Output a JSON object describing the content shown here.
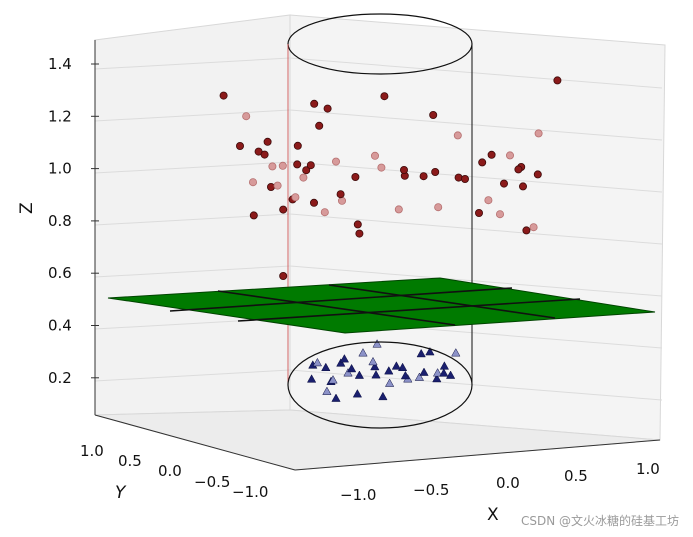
{
  "chart_data": {
    "type": "scatter",
    "projection": "3d",
    "title": "",
    "xlabel": "X",
    "ylabel": "Y",
    "zlabel": "Z",
    "x_ticks": [
      "−1.0",
      "−0.5",
      "0.0",
      "0.5",
      "1.0"
    ],
    "y_ticks": [
      "1.0",
      "0.5",
      "0.0",
      "−0.5",
      "−1.0"
    ],
    "z_ticks": [
      "1.4",
      "1.2",
      "1.0",
      "0.8",
      "0.6",
      "0.4",
      "0.2"
    ],
    "zlim": [
      0.1,
      1.45
    ],
    "grid": true,
    "separating_plane": {
      "z": 0.45,
      "color": "#007a00"
    },
    "cylinder_outline": true,
    "colors": {
      "upper_dark": "#8b1a1a",
      "upper_light": "#d79a9a",
      "lower_dark": "#1a1f6e",
      "lower_light": "#8c92c8",
      "pane": "#f2f2f2",
      "grid": "#dcdcdc"
    },
    "series": [
      {
        "marker": "circle",
        "points": [
          {
            "x": -0.95,
            "y": -0.2,
            "z": 1.3
          },
          {
            "x": -0.85,
            "y": 0.1,
            "z": 1.2
          },
          {
            "x": -0.82,
            "y": -0.4,
            "z": 1.12
          },
          {
            "x": -0.8,
            "y": 0.3,
            "z": 1.05
          },
          {
            "x": -0.78,
            "y": -0.1,
            "z": 0.96
          },
          {
            "x": -0.75,
            "y": 0.5,
            "z": 0.9
          },
          {
            "x": -0.72,
            "y": -0.5,
            "z": 0.86
          },
          {
            "x": -0.7,
            "y": 0.2,
            "z": 1.0
          },
          {
            "x": -0.68,
            "y": -0.3,
            "z": 1.08
          },
          {
            "x": -0.66,
            "y": 0.4,
            "z": 0.82
          },
          {
            "x": -0.64,
            "y": 0.0,
            "z": 0.94
          },
          {
            "x": -0.62,
            "y": -0.6,
            "z": 1.15
          },
          {
            "x": -0.6,
            "y": 0.6,
            "z": 0.98
          },
          {
            "x": -0.58,
            "y": -0.2,
            "z": 1.03
          },
          {
            "x": -0.56,
            "y": 0.1,
            "z": 0.88
          },
          {
            "x": -0.55,
            "y": -0.4,
            "z": 0.62
          },
          {
            "x": -0.52,
            "y": 0.3,
            "z": 0.95
          },
          {
            "x": -0.5,
            "y": -0.1,
            "z": 1.1
          },
          {
            "x": -0.48,
            "y": 0.5,
            "z": 1.22
          },
          {
            "x": -0.46,
            "y": -0.5,
            "z": 0.93
          },
          {
            "x": -0.44,
            "y": 0.2,
            "z": 0.86
          },
          {
            "x": -0.42,
            "y": -0.3,
            "z": 1.02
          },
          {
            "x": -0.4,
            "y": 0.4,
            "z": 0.81
          },
          {
            "x": -0.38,
            "y": 0.0,
            "z": 1.17
          },
          {
            "x": -0.35,
            "y": -0.6,
            "z": 1.06
          },
          {
            "x": -0.32,
            "y": 0.6,
            "z": 0.84
          },
          {
            "x": -0.3,
            "y": -0.2,
            "z": 1.25
          },
          {
            "x": -0.26,
            "y": 0.1,
            "z": 0.9
          },
          {
            "x": -0.22,
            "y": -0.4,
            "z": 1.06
          },
          {
            "x": -0.18,
            "y": 0.3,
            "z": 0.77
          },
          {
            "x": -0.14,
            "y": -0.1,
            "z": 0.98
          },
          {
            "x": -0.1,
            "y": 0.5,
            "z": 1.02
          },
          {
            "x": -0.06,
            "y": -0.5,
            "z": 0.79
          },
          {
            "x": 0.0,
            "y": 0.2,
            "z": 1.27
          },
          {
            "x": 0.05,
            "y": -0.3,
            "z": 1.03
          },
          {
            "x": 0.1,
            "y": 0.4,
            "z": 0.95
          },
          {
            "x": 0.15,
            "y": 0.0,
            "z": 1.0
          },
          {
            "x": 0.2,
            "y": -0.6,
            "z": 0.89
          },
          {
            "x": 0.25,
            "y": 0.6,
            "z": 1.17
          },
          {
            "x": 0.3,
            "y": -0.2,
            "z": 0.99
          },
          {
            "x": 0.35,
            "y": 0.1,
            "z": 0.85
          },
          {
            "x": 0.4,
            "y": -0.4,
            "z": 1.02
          },
          {
            "x": 0.45,
            "y": 0.3,
            "z": 0.95
          },
          {
            "x": 0.5,
            "y": -0.1,
            "z": 1.14
          },
          {
            "x": 0.55,
            "y": 0.5,
            "z": 0.8
          },
          {
            "x": 0.6,
            "y": -0.5,
            "z": 1.0
          },
          {
            "x": 0.65,
            "y": 0.2,
            "z": 0.87
          },
          {
            "x": 0.68,
            "y": -0.3,
            "z": 1.05
          },
          {
            "x": 0.72,
            "y": 0.4,
            "z": 0.92
          },
          {
            "x": 0.75,
            "y": 0.0,
            "z": 0.83
          },
          {
            "x": 0.78,
            "y": -0.6,
            "z": 1.1
          },
          {
            "x": 0.8,
            "y": 0.6,
            "z": 0.97
          },
          {
            "x": 0.84,
            "y": -0.2,
            "z": 1.07
          },
          {
            "x": 0.88,
            "y": 0.1,
            "z": 0.93
          },
          {
            "x": 0.92,
            "y": -0.4,
            "z": 1.03
          },
          {
            "x": 0.95,
            "y": 0.3,
            "z": 1.12
          },
          {
            "x": 1.0,
            "y": -0.1,
            "z": 0.99
          },
          {
            "x": 1.04,
            "y": 0.5,
            "z": 1.31
          },
          {
            "x": 0.96,
            "y": 0.0,
            "z": 0.78
          },
          {
            "x": 0.86,
            "y": 0.4,
            "z": 0.74
          }
        ]
      },
      {
        "marker": "triangle",
        "points": [
          {
            "x": -0.42,
            "y": 0.0,
            "z": 0.25
          },
          {
            "x": -0.38,
            "y": 0.3,
            "z": 0.22
          },
          {
            "x": -0.35,
            "y": -0.3,
            "z": 0.28
          },
          {
            "x": -0.32,
            "y": 0.1,
            "z": 0.18
          },
          {
            "x": -0.3,
            "y": 0.4,
            "z": 0.23
          },
          {
            "x": -0.28,
            "y": -0.1,
            "z": 0.2
          },
          {
            "x": -0.25,
            "y": 0.2,
            "z": 0.26
          },
          {
            "x": -0.22,
            "y": -0.4,
            "z": 0.15
          },
          {
            "x": -0.2,
            "y": 0.0,
            "z": 0.22
          },
          {
            "x": -0.17,
            "y": 0.3,
            "z": 0.19
          },
          {
            "x": -0.15,
            "y": -0.2,
            "z": 0.25
          },
          {
            "x": -0.12,
            "y": 0.1,
            "z": 0.29
          },
          {
            "x": -0.1,
            "y": -0.3,
            "z": 0.16
          },
          {
            "x": -0.06,
            "y": 0.2,
            "z": 0.23
          },
          {
            "x": -0.03,
            "y": -0.1,
            "z": 0.27
          },
          {
            "x": 0.0,
            "y": 0.4,
            "z": 0.2
          },
          {
            "x": 0.03,
            "y": -0.4,
            "z": 0.24
          },
          {
            "x": 0.06,
            "y": 0.0,
            "z": 0.18
          },
          {
            "x": 0.1,
            "y": 0.3,
            "z": 0.22
          },
          {
            "x": 0.13,
            "y": -0.2,
            "z": 0.26
          },
          {
            "x": 0.16,
            "y": 0.1,
            "z": 0.19
          },
          {
            "x": 0.2,
            "y": -0.3,
            "z": 0.23
          },
          {
            "x": 0.23,
            "y": 0.2,
            "z": 0.28
          },
          {
            "x": 0.26,
            "y": -0.1,
            "z": 0.21
          },
          {
            "x": 0.3,
            "y": 0.4,
            "z": 0.17
          },
          {
            "x": 0.33,
            "y": -0.4,
            "z": 0.25
          },
          {
            "x": 0.36,
            "y": 0.0,
            "z": 0.22
          },
          {
            "x": 0.4,
            "y": 0.3,
            "z": 0.19
          },
          {
            "x": 0.43,
            "y": -0.2,
            "z": 0.26
          },
          {
            "x": 0.46,
            "y": 0.1,
            "z": 0.29
          },
          {
            "x": -0.4,
            "y": -0.2,
            "z": 0.21
          },
          {
            "x": 0.44,
            "y": -0.3,
            "z": 0.24
          },
          {
            "x": -0.08,
            "y": 0.45,
            "z": 0.3
          },
          {
            "x": 0.08,
            "y": -0.45,
            "z": 0.16
          },
          {
            "x": 0.25,
            "y": 0.45,
            "z": 0.27
          },
          {
            "x": -0.27,
            "y": -0.45,
            "z": 0.18
          }
        ]
      }
    ]
  },
  "watermark": "CSDN @文火冰糖的硅基工坊"
}
